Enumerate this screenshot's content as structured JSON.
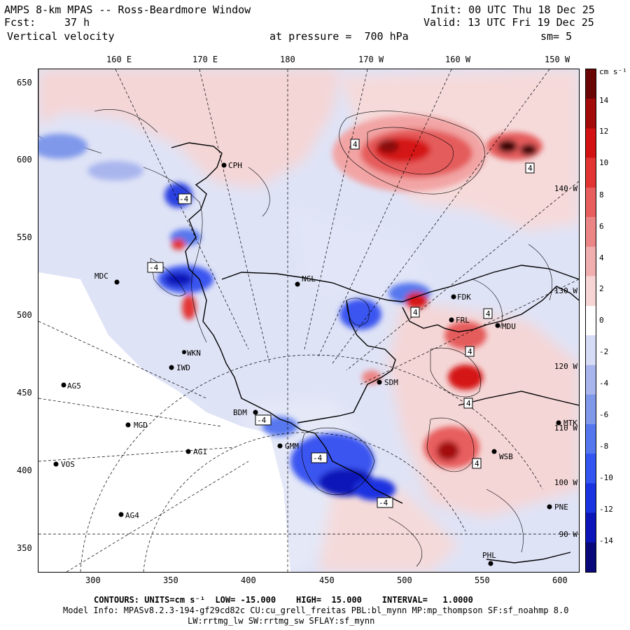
{
  "header": {
    "title": "AMPS 8-km MPAS -- Ross-Beardmore Window",
    "init": "Init: 00 UTC Thu 18 Dec 25",
    "fcst_label": "Fcst:",
    "fcst_value": "37 h",
    "valid": "Valid: 13 UTC Fri 19 Dec 25",
    "variable": "Vertical velocity",
    "pressure": "at pressure =  700 hPa",
    "smoothing": "sm= 5"
  },
  "top_axis": [
    "160 E",
    "170 E",
    "180",
    "170 W",
    "160 W",
    "150 W"
  ],
  "left_axis": [
    "650",
    "600",
    "550",
    "500",
    "450",
    "400",
    "350"
  ],
  "bottom_axis": [
    "300",
    "350",
    "400",
    "450",
    "500",
    "550",
    "600"
  ],
  "right_meridians": [
    "140 W",
    "130 W",
    "120 W",
    "110 W",
    "100 W",
    "90 W"
  ],
  "colorbar": {
    "units": "cm s⁻¹",
    "labels": [
      "14",
      "12",
      "10",
      "8",
      "6",
      "4",
      "2",
      "0",
      "-2",
      "-4",
      "-6",
      "-8",
      "-10",
      "-12",
      "-14"
    ],
    "min": -15,
    "max": 15,
    "colors": [
      "#08087a",
      "#0c16b8",
      "#1a33e0",
      "#3355f0",
      "#5577ee",
      "#7f98ea",
      "#a9b6ee",
      "#d6dcf6",
      "#ffffff",
      "#f7d5d5",
      "#f0aeae",
      "#ec8585",
      "#e85e5e",
      "#e33434",
      "#d21212",
      "#a30a0a",
      "#6b0606"
    ]
  },
  "stations": [
    {
      "id": "CPH"
    },
    {
      "id": "MDC"
    },
    {
      "id": "NGL"
    },
    {
      "id": "FDK"
    },
    {
      "id": "MDU"
    },
    {
      "id": "FRL"
    },
    {
      "id": "IWD"
    },
    {
      "id": "WKN"
    },
    {
      "id": "AG5"
    },
    {
      "id": "SDM"
    },
    {
      "id": "MGD"
    },
    {
      "id": "BDM"
    },
    {
      "id": "GMM"
    },
    {
      "id": "AG1"
    },
    {
      "id": "VOS"
    },
    {
      "id": "MTK"
    },
    {
      "id": "WSB"
    },
    {
      "id": "AG4"
    },
    {
      "id": "PNE"
    },
    {
      "id": "PHL"
    }
  ],
  "contour_boxes": [
    "4",
    "4",
    "-4",
    "-4",
    "4",
    "4",
    "4",
    "-4",
    "4",
    "-4",
    "4",
    "-4"
  ],
  "footer": {
    "contours": "CONTOURS: UNITS=cm s⁻¹  LOW= -15.000    HIGH=  15.000    INTERVAL=   1.0000",
    "model_info": "Model Info: MPASv8.2.3-194-gf29cd82c CU:cu_grell_freitas PBL:bl_mynn MP:mp_thompson SF:sf_noahmp 8.0",
    "model_info2": "LW:rrtmg_lw SW:rrtmg_sw SFLAY:sf_mynn"
  }
}
